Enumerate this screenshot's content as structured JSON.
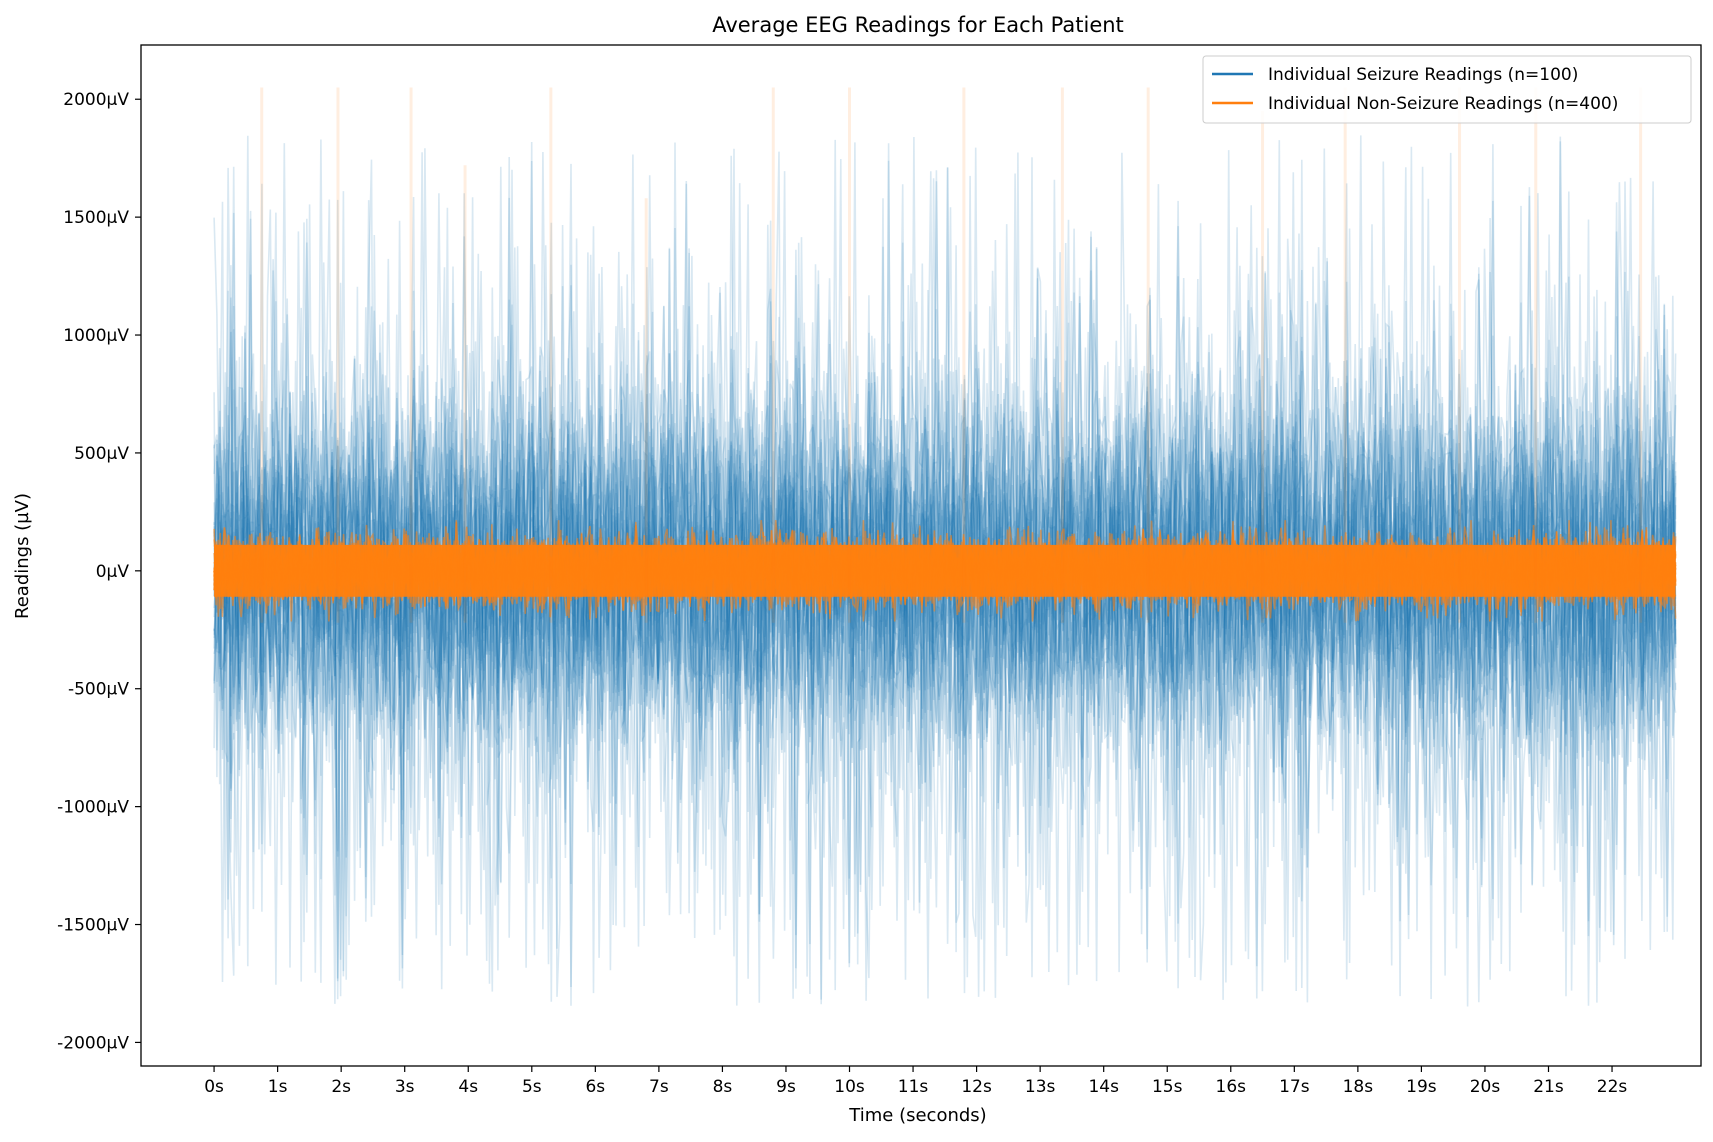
{
  "chart_data": {
    "type": "line",
    "title": "Average EEG Readings for Each Patient",
    "xlabel": "Time (seconds)",
    "ylabel": "Readings (µV)",
    "x_unit_suffix": "s",
    "y_unit_suffix": "µV",
    "xlim": [
      -1.15,
      23.4
    ],
    "ylim": [
      -2100,
      2230
    ],
    "x_ticks": [
      0,
      1,
      2,
      3,
      4,
      5,
      6,
      7,
      8,
      9,
      10,
      11,
      12,
      13,
      14,
      15,
      16,
      17,
      18,
      19,
      20,
      21,
      22
    ],
    "x_tick_labels": [
      "0s",
      "1s",
      "2s",
      "3s",
      "4s",
      "5s",
      "6s",
      "7s",
      "8s",
      "9s",
      "10s",
      "11s",
      "12s",
      "13s",
      "14s",
      "15s",
      "16s",
      "17s",
      "18s",
      "19s",
      "20s",
      "21s",
      "22s"
    ],
    "y_ticks": [
      -2000,
      -1500,
      -1000,
      -500,
      0,
      500,
      1000,
      1500,
      2000
    ],
    "y_tick_labels": [
      "-2000µV",
      "-1500µV",
      "-1000µV",
      "-500µV",
      "0µV",
      "500µV",
      "1000µV",
      "1500µV",
      "2000µV"
    ],
    "grid": false,
    "legend_position": "top-right",
    "duration_seconds": 23,
    "series": [
      {
        "name": "Individual Seizure Readings (n=100)",
        "color": "#1f77b4",
        "count": 100,
        "typical_range_uv": [
          -1000,
          1000
        ],
        "extreme_range_uv": [
          -1900,
          2050
        ]
      },
      {
        "name": "Individual Non-Seizure Readings (n=400)",
        "color": "#ff7f0e",
        "count": 400,
        "typical_range_uv": [
          -200,
          200
        ],
        "spike_times_s": [
          0.75,
          1.95,
          3.1,
          3.95,
          5.3,
          6.8,
          8.8,
          10.0,
          11.8,
          13.35,
          14.7,
          16.5,
          17.8,
          19.6,
          20.8,
          22.45
        ],
        "spike_peaks_uv": [
          2050,
          2050,
          2050,
          1720,
          2050,
          1580,
          2050,
          2050,
          2050,
          2050,
          2050,
          1950,
          2050,
          2050,
          2050,
          2050
        ]
      }
    ]
  }
}
